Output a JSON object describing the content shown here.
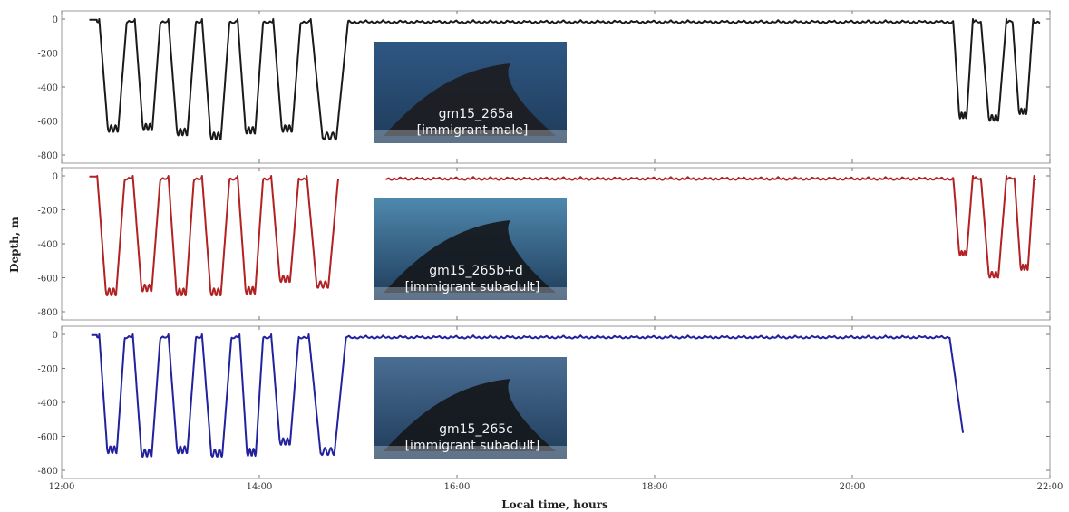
{
  "chart_data": {
    "type": "line",
    "xlabel": "Local time, hours",
    "ylabel": "Depth, m",
    "xlim": [
      12.0,
      22.0
    ],
    "ylim": [
      -800,
      0
    ],
    "xticks": [
      "12:00",
      "14:00",
      "16:00",
      "18:00",
      "20:00",
      "22:00"
    ],
    "yticks": [
      "0",
      "-200",
      "-400",
      "-600",
      "-800"
    ],
    "panels": [
      {
        "id": "a",
        "color": "#1a1a1a",
        "photo_caption": [
          "gm15_265a",
          "[immigrant male]"
        ],
        "photo_tones": [
          "#2f5783",
          "#1c1c20"
        ],
        "dives": [
          {
            "start": 12.38,
            "end": 12.66,
            "depth": 665
          },
          {
            "start": 12.74,
            "end": 13.0,
            "depth": 655
          },
          {
            "start": 13.08,
            "end": 13.36,
            "depth": 685
          },
          {
            "start": 13.42,
            "end": 13.7,
            "depth": 710
          },
          {
            "start": 13.78,
            "end": 14.04,
            "depth": 675
          },
          {
            "start": 14.14,
            "end": 14.42,
            "depth": 665
          },
          {
            "start": 14.52,
            "end": 14.9,
            "depth": 710
          },
          {
            "start": 21.02,
            "end": 21.22,
            "depth": 585
          },
          {
            "start": 21.3,
            "end": 21.56,
            "depth": 600
          },
          {
            "start": 21.62,
            "end": 21.83,
            "depth": 560
          }
        ],
        "segments": [
          [
            12.28,
            21.9
          ]
        ]
      },
      {
        "id": "b",
        "color": "#b22222",
        "photo_caption": [
          "gm15_265b+d",
          "[immigrant subadult]"
        ],
        "photo_tones": [
          "#4e88ad",
          "#15181c"
        ],
        "dives": [
          {
            "start": 12.36,
            "end": 12.64,
            "depth": 705
          },
          {
            "start": 12.72,
            "end": 13.0,
            "depth": 680
          },
          {
            "start": 13.08,
            "end": 13.34,
            "depth": 705
          },
          {
            "start": 13.42,
            "end": 13.7,
            "depth": 705
          },
          {
            "start": 13.78,
            "end": 14.04,
            "depth": 695
          },
          {
            "start": 14.12,
            "end": 14.4,
            "depth": 625
          },
          {
            "start": 14.48,
            "end": 14.8,
            "depth": 660
          },
          {
            "start": 21.02,
            "end": 21.22,
            "depth": 470
          },
          {
            "start": 21.3,
            "end": 21.56,
            "depth": 600
          },
          {
            "start": 21.64,
            "end": 21.84,
            "depth": 555
          }
        ],
        "segments": [
          [
            12.28,
            14.8
          ],
          [
            15.28,
            21.86
          ]
        ]
      },
      {
        "id": "c",
        "color": "#22229e",
        "photo_caption": [
          "gm15_265c",
          "[immigrant subadult]"
        ],
        "photo_tones": [
          "#4a6e93",
          "#15171b"
        ],
        "dives": [
          {
            "start": 12.38,
            "end": 12.64,
            "depth": 700
          },
          {
            "start": 12.72,
            "end": 13.0,
            "depth": 720
          },
          {
            "start": 13.08,
            "end": 13.36,
            "depth": 700
          },
          {
            "start": 13.42,
            "end": 13.72,
            "depth": 720
          },
          {
            "start": 13.8,
            "end": 14.04,
            "depth": 715
          },
          {
            "start": 14.12,
            "end": 14.4,
            "depth": 650
          },
          {
            "start": 14.5,
            "end": 14.88,
            "depth": 710
          }
        ],
        "drop_end": {
          "start": 20.98,
          "end": 21.12,
          "depth": 580
        },
        "segments": [
          [
            12.3,
            21.12
          ]
        ]
      }
    ]
  }
}
